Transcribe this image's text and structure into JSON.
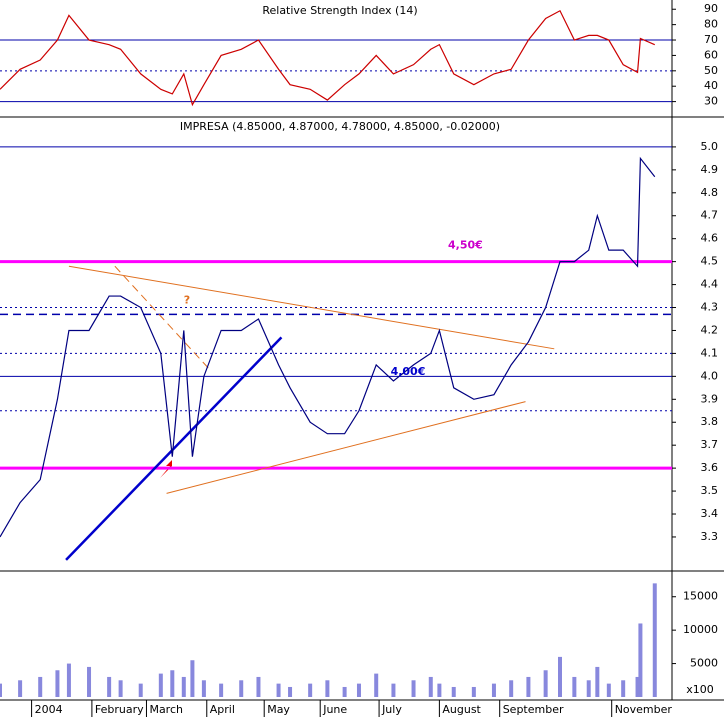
{
  "chart_data": [
    {
      "type": "line",
      "title": "Relative Strength Index (14)",
      "x": [
        0,
        7,
        14,
        20,
        24,
        31,
        38,
        42,
        49,
        56,
        60,
        64,
        67,
        71,
        77,
        84,
        90,
        97,
        101,
        108,
        114,
        120,
        125,
        131,
        137,
        144,
        150,
        153,
        158,
        165,
        172,
        178,
        184,
        190,
        195,
        200,
        205,
        208,
        212,
        217,
        222,
        223,
        228
      ],
      "series": [
        {
          "name": "RSI",
          "color": "#cc0000",
          "values": [
            38,
            51,
            57,
            70,
            86,
            70,
            67,
            64,
            48,
            38,
            35,
            48,
            28,
            41,
            60,
            64,
            70,
            51,
            41,
            38,
            31,
            41,
            48,
            60,
            48,
            54,
            64,
            67,
            48,
            41,
            48,
            51,
            70,
            84,
            89,
            70,
            73,
            73,
            70,
            54,
            49,
            71,
            67
          ]
        }
      ],
      "xlim": [
        0,
        234
      ],
      "ylim": [
        20,
        96
      ],
      "yticks": [
        30,
        40,
        50,
        60,
        70,
        80,
        90
      ],
      "hlines": [
        {
          "value": 70,
          "color": "#0000aa",
          "style": "solid"
        },
        {
          "value": 50,
          "color": "#0000aa",
          "style": "dotted"
        },
        {
          "value": 30,
          "color": "#0000aa",
          "style": "solid"
        }
      ]
    },
    {
      "type": "line",
      "title": "IMPRESA (4.85000, 4.87000, 4.78000, 4.85000, -0.02000)",
      "x": [
        0,
        7,
        14,
        20,
        24,
        31,
        38,
        42,
        49,
        56,
        60,
        64,
        67,
        71,
        77,
        84,
        90,
        97,
        101,
        108,
        114,
        120,
        125,
        131,
        137,
        144,
        150,
        153,
        158,
        165,
        172,
        178,
        184,
        190,
        195,
        200,
        205,
        208,
        212,
        217,
        222,
        223,
        228
      ],
      "series": [
        {
          "name": "IMPRESA",
          "color": "#000080",
          "values": [
            3.3,
            3.45,
            3.55,
            3.9,
            4.2,
            4.2,
            4.35,
            4.35,
            4.3,
            4.1,
            3.65,
            4.2,
            3.65,
            4.0,
            4.2,
            4.2,
            4.25,
            4.05,
            3.95,
            3.8,
            3.75,
            3.75,
            3.85,
            4.05,
            3.98,
            4.05,
            4.1,
            4.2,
            3.95,
            3.9,
            3.92,
            4.05,
            4.15,
            4.3,
            4.5,
            4.5,
            4.55,
            4.7,
            4.55,
            4.55,
            4.48,
            4.95,
            4.87
          ]
        }
      ],
      "xlim": [
        0,
        234
      ],
      "ylim": [
        3.156,
        5.126
      ],
      "yticks": [
        {
          "value": 3.3,
          "label": "3.3"
        },
        {
          "value": 3.4,
          "label": "3.4"
        },
        {
          "value": 3.5,
          "label": "3.5"
        },
        {
          "value": 3.6,
          "label": "3.6"
        },
        {
          "value": 3.7,
          "label": "3.7"
        },
        {
          "value": 3.8,
          "label": "3.8"
        },
        {
          "value": 3.9,
          "label": "3.9"
        },
        {
          "value": 4.0,
          "label": "4.0"
        },
        {
          "value": 4.1,
          "label": "4.1"
        },
        {
          "value": 4.2,
          "label": "4.2"
        },
        {
          "value": 4.3,
          "label": "4.3"
        },
        {
          "value": 4.4,
          "label": "4.4"
        },
        {
          "value": 4.5,
          "label": "4.5"
        },
        {
          "value": 4.6,
          "label": "4.6"
        },
        {
          "value": 4.7,
          "label": "4.7"
        },
        {
          "value": 4.8,
          "label": "4.8"
        },
        {
          "value": 4.9,
          "label": "4.9"
        },
        {
          "value": 5.0,
          "label": "5.0"
        }
      ],
      "hlines": [
        {
          "value": 5.0,
          "color": "#0000aa",
          "style": "solid"
        },
        {
          "value": 4.5,
          "color": "#ff00ff",
          "style": "thick"
        },
        {
          "value": 4.3,
          "color": "#0000aa",
          "style": "dotted"
        },
        {
          "value": 4.27,
          "color": "#0000aa",
          "style": "dashed"
        },
        {
          "value": 4.1,
          "color": "#0000aa",
          "style": "dotted"
        },
        {
          "value": 4.0,
          "color": "#0000aa",
          "style": "solid"
        },
        {
          "value": 3.85,
          "color": "#0000aa",
          "style": "dotted"
        },
        {
          "value": 3.6,
          "color": "#ff00ff",
          "style": "thick"
        }
      ],
      "trendlines": [
        {
          "x": [
            24,
            193
          ],
          "y": [
            4.48,
            4.12
          ],
          "color": "#e07020",
          "style": "solid"
        },
        {
          "x": [
            58,
            183
          ],
          "y": [
            3.49,
            3.89
          ],
          "color": "#e07020",
          "style": "solid"
        },
        {
          "x": [
            40,
            73
          ],
          "y": [
            4.48,
            4.03
          ],
          "color": "#e07020",
          "style": "dashed"
        },
        {
          "x": [
            23,
            98
          ],
          "y": [
            3.2,
            4.17
          ],
          "color": "#0000cc",
          "style": "thick"
        }
      ],
      "annotations": [
        {
          "text": "4,50€",
          "x": 156,
          "y": 4.57,
          "color": "#cc00cc"
        },
        {
          "text": "4,00€",
          "x": 136,
          "y": 4.02,
          "color": "#0000cc"
        },
        {
          "text": "?",
          "x": 64,
          "y": 4.33,
          "color": "#e07020"
        }
      ]
    },
    {
      "type": "bar",
      "unit": "x100",
      "x": [
        0,
        7,
        14,
        20,
        24,
        31,
        38,
        42,
        49,
        56,
        60,
        64,
        67,
        71,
        77,
        84,
        90,
        97,
        101,
        108,
        114,
        120,
        125,
        131,
        137,
        144,
        150,
        153,
        158,
        165,
        172,
        178,
        184,
        190,
        195,
        200,
        205,
        208,
        212,
        217,
        222,
        223,
        228
      ],
      "series": [
        {
          "name": "Volume",
          "color": "#8888dd",
          "values": [
            2000,
            2500,
            3000,
            4000,
            5000,
            4500,
            3000,
            2500,
            2000,
            3500,
            4000,
            3000,
            5500,
            2500,
            2000,
            2500,
            3000,
            2000,
            1500,
            2000,
            2500,
            1500,
            2000,
            3500,
            2000,
            2500,
            3000,
            2000,
            1500,
            1500,
            2000,
            2500,
            3000,
            4000,
            6000,
            3000,
            2500,
            4500,
            2000,
            2500,
            3000,
            11000,
            17000
          ]
        }
      ],
      "xlim": [
        0,
        234
      ],
      "ylim": [
        0,
        18700
      ],
      "yticks": [
        5000,
        10000,
        15000
      ],
      "xticks": [
        {
          "value": 11,
          "label": "2004"
        },
        {
          "value": 32,
          "label": "February"
        },
        {
          "value": 51,
          "label": "March"
        },
        {
          "value": 72,
          "label": "April"
        },
        {
          "value": 92,
          "label": "May"
        },
        {
          "value": 111.5,
          "label": "June"
        },
        {
          "value": 132,
          "label": "July"
        },
        {
          "value": 153,
          "label": "August"
        },
        {
          "value": 174,
          "label": "September"
        },
        {
          "value": 213,
          "label": "November"
        }
      ]
    }
  ]
}
